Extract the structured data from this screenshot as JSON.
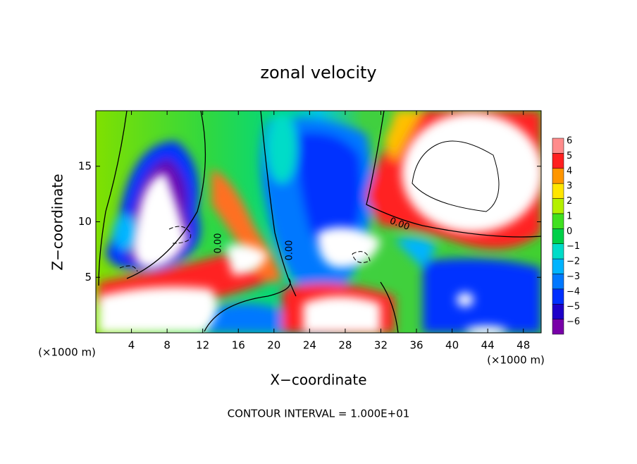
{
  "chart_data": {
    "type": "contour",
    "title": "zonal velocity",
    "x_label": "X−coordinate",
    "y_label": "Z−coordinate",
    "x_unit": "(×1000 m)",
    "y_unit": "(×1000 m)",
    "xlim": [
      0,
      50
    ],
    "ylim": [
      0,
      20
    ],
    "xticks": [
      4,
      8,
      12,
      16,
      20,
      24,
      28,
      32,
      36,
      40,
      44,
      48
    ],
    "yticks": [
      5,
      10,
      15
    ],
    "contour_labels": [
      "0.00",
      "0.00",
      "0.00"
    ],
    "footnote": "CONTOUR INTERVAL = 1.000E+01",
    "colorbar": {
      "levels": [
        -6,
        -5,
        -4,
        -3,
        -2,
        -1,
        0,
        1,
        2,
        3,
        4,
        5,
        6
      ],
      "level_labels": [
        {
          "value": -6,
          "label": "−6"
        },
        {
          "value": -5,
          "label": "−5"
        },
        {
          "value": -4,
          "label": "−4"
        },
        {
          "value": -3,
          "label": "−3"
        },
        {
          "value": -2,
          "label": "−2"
        },
        {
          "value": -1,
          "label": "−1"
        },
        0,
        1,
        2,
        3,
        4,
        5,
        6
      ],
      "colors": [
        "#7800a8",
        "#1e00c8",
        "#0030ff",
        "#0078ff",
        "#00b4ff",
        "#00dcc8",
        "#00d048",
        "#40e020",
        "#b4f000",
        "#ffe600",
        "#ff9600",
        "#ff2020",
        "#ff8c8c"
      ]
    }
  }
}
